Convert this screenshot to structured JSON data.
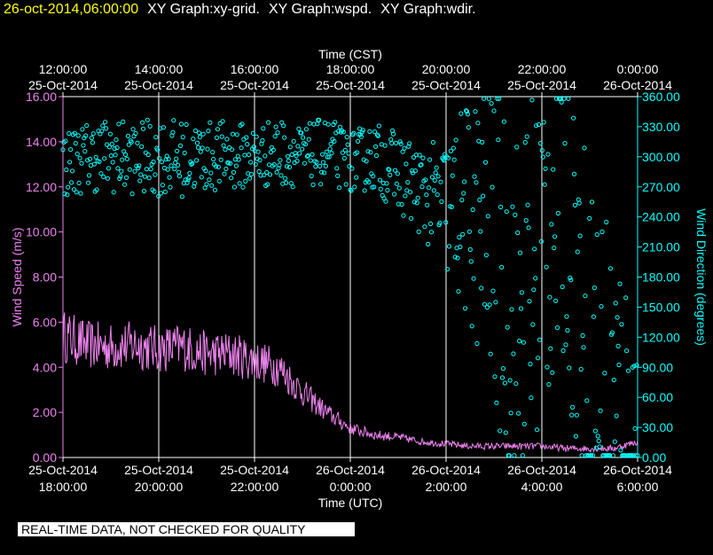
{
  "header": {
    "date": "26-oct-2014,06:00:00",
    "graph_titles": [
      "XY Graph:xy-grid.",
      "XY Graph:wspd.",
      "XY Graph:wdir."
    ]
  },
  "disclaimer": "REAL-TIME DATA, NOT CHECKED FOR QUALITY",
  "colors": {
    "background": "#000000",
    "wspd": "#ee82ee",
    "wdir": "#00ffff",
    "grid": "#ffffff",
    "date": "#ffff00"
  },
  "chart_data": {
    "type": "line",
    "title": "",
    "x_range_hours_utc": [
      0,
      12
    ],
    "top_axis": {
      "label": "Time (CST)",
      "ticks": [
        {
          "h": 0,
          "time": "12:00:00",
          "date": "25-Oct-2014"
        },
        {
          "h": 2,
          "time": "14:00:00",
          "date": "25-Oct-2014"
        },
        {
          "h": 4,
          "time": "16:00:00",
          "date": "25-Oct-2014"
        },
        {
          "h": 6,
          "time": "18:00:00",
          "date": "25-Oct-2014"
        },
        {
          "h": 8,
          "time": "20:00:00",
          "date": "25-Oct-2014"
        },
        {
          "h": 10,
          "time": "22:00:00",
          "date": "25-Oct-2014"
        },
        {
          "h": 12,
          "time": "0:00:00",
          "date": "26-Oct-2014"
        }
      ]
    },
    "bottom_axis": {
      "label": "Time (UTC)",
      "ticks": [
        {
          "h": 0,
          "date": "25-Oct-2014",
          "time": "18:00:00"
        },
        {
          "h": 2,
          "date": "25-Oct-2014",
          "time": "20:00:00"
        },
        {
          "h": 4,
          "date": "25-Oct-2014",
          "time": "22:00:00"
        },
        {
          "h": 6,
          "date": "26-Oct-2014",
          "time": "0:00:00"
        },
        {
          "h": 8,
          "date": "26-Oct-2014",
          "time": "2:00:00"
        },
        {
          "h": 10,
          "date": "26-Oct-2014",
          "time": "4:00:00"
        },
        {
          "h": 12,
          "date": "26-Oct-2014",
          "time": "6:00:00"
        }
      ]
    },
    "left_axis": {
      "label": "Wind Speed (m/s)",
      "ylim": [
        0,
        16
      ],
      "ticks": [
        "0.00",
        "2.00",
        "4.00",
        "6.00",
        "8.00",
        "10.00",
        "12.00",
        "14.00",
        "16.00"
      ]
    },
    "right_axis": {
      "label": "Wind Direction (degrees)",
      "ylim": [
        0,
        360
      ],
      "ticks": [
        "0.00",
        "30.00",
        "60.00",
        "90.00",
        "120.00",
        "150.00",
        "180.00",
        "210.00",
        "240.00",
        "270.00",
        "300.00",
        "330.00",
        "360.00"
      ]
    },
    "series": [
      {
        "name": "wspd",
        "axis": "left",
        "style": "line",
        "x_hours": [
          0,
          0.5,
          1,
          1.5,
          2,
          2.5,
          3,
          3.5,
          4,
          4.5,
          5,
          5.5,
          6,
          6.5,
          7,
          7.5,
          8,
          8.5,
          9,
          9.5,
          10,
          10.5,
          11,
          11.5,
          12
        ],
        "values": [
          5.4,
          5.0,
          4.9,
          5.0,
          4.8,
          4.9,
          4.6,
          4.6,
          4.3,
          4.0,
          2.9,
          2.0,
          1.3,
          1.0,
          0.9,
          0.7,
          0.6,
          0.5,
          0.5,
          0.5,
          0.5,
          0.4,
          0.4,
          0.4,
          0.7
        ]
      },
      {
        "name": "wdir",
        "axis": "right",
        "style": "points",
        "x_hours": [
          0,
          0.5,
          1,
          1.5,
          2,
          2.5,
          3,
          3.5,
          4,
          4.5,
          5,
          5.5,
          6,
          6.5,
          7,
          7.5,
          8,
          8.5,
          9,
          9.5,
          10,
          10.5,
          11,
          11.5,
          12
        ],
        "values": [
          292,
          300,
          302,
          298,
          300,
          298,
          300,
          302,
          300,
          305,
          300,
          306,
          295,
          300,
          285,
          265,
          250,
          245,
          215,
          130,
          220,
          260,
          90,
          40,
          25
        ],
        "scatter_range": [
          35,
          35,
          38,
          36,
          40,
          38,
          35,
          35,
          32,
          35,
          30,
          35,
          30,
          35,
          40,
          45,
          70,
          120,
          170,
          200,
          190,
          170,
          200,
          230,
          100
        ]
      }
    ]
  }
}
